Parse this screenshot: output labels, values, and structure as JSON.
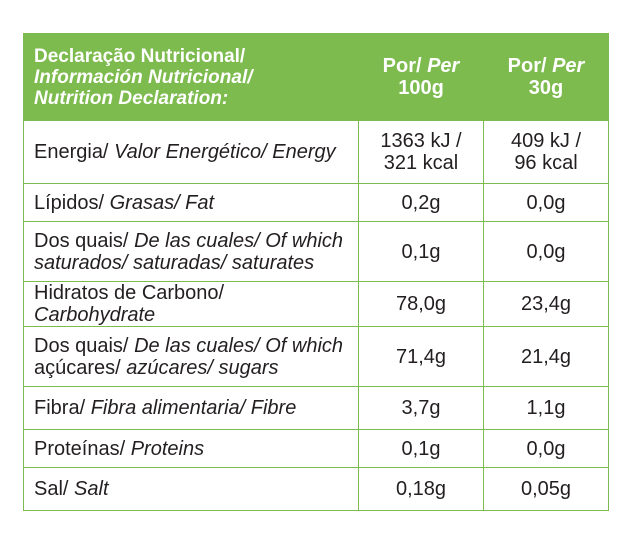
{
  "header": {
    "title_pt": "Declaração Nutricional/",
    "title_es": "Información Nutricional/",
    "title_en": "Nutrition Declaration:",
    "col1_a": "Por/ ",
    "col1_b": "Per",
    "col1_c": "100g",
    "col2_a": "Por/ ",
    "col2_b": "Per",
    "col2_c": "30g"
  },
  "rows": [
    {
      "pt": "Energia/ ",
      "es": "Valor Energético/ Energy",
      "v1a": "1363 kJ /",
      "v1b": "321 kcal",
      "v2a": "409 kJ /",
      "v2b": "96 kcal"
    },
    {
      "pt": "Lípidos/ ",
      "es": "Grasas/ Fat",
      "v1": "0,2g",
      "v2": "0,0g"
    },
    {
      "pt": "Dos quais/ ",
      "es": "De las cuales/ Of which",
      "pt2": "saturados/ saturadas/ saturates",
      "v1": "0,1g",
      "v2": "0,0g"
    },
    {
      "pt": "Hidratos de Carbono/ ",
      "es": "Carbohydrate",
      "v1": "78,0g",
      "v2": "23,4g"
    },
    {
      "pt": "Dos quais/ ",
      "es": "De las cuales/ Of which",
      "pt2a": "açúcares/ ",
      "es2": "azúcares/ sugars",
      "v1": "71,4g",
      "v2": "21,4g"
    },
    {
      "pt": "Fibra/ ",
      "es": "Fibra alimentaria/ Fibre",
      "v1": "3,7g",
      "v2": "1,1g"
    },
    {
      "pt": "Proteínas/ ",
      "es": "Proteins",
      "v1": "0,1g",
      "v2": "0,0g"
    },
    {
      "pt": "Sal/ ",
      "es": "Salt",
      "v1": "0,18g",
      "v2": "0,05g"
    }
  ],
  "colors": {
    "accent": "#7dbb4e",
    "text": "#231f20"
  }
}
